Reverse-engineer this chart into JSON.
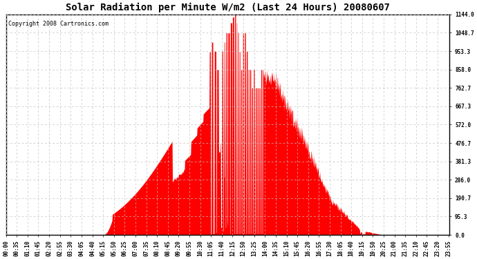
{
  "title": "Solar Radiation per Minute W/m2 (Last 24 Hours) 20080607",
  "copyright": "Copyright 2008 Cartronics.com",
  "background_color": "#ffffff",
  "plot_bg_color": "#ffffff",
  "fill_color": "#ff0000",
  "line_color": "#ff0000",
  "grid_color": "#c0c0c0",
  "dashed_line_color": "#ff0000",
  "ymin": 0.0,
  "ymax": 1144.0,
  "yticks": [
    0.0,
    95.3,
    190.7,
    286.0,
    381.3,
    476.7,
    572.0,
    667.3,
    762.7,
    858.0,
    953.3,
    1048.7,
    1144.0
  ],
  "num_minutes": 1440,
  "title_fontsize": 10,
  "copyright_fontsize": 6,
  "tick_fontsize": 5.5,
  "tick_step": 35
}
